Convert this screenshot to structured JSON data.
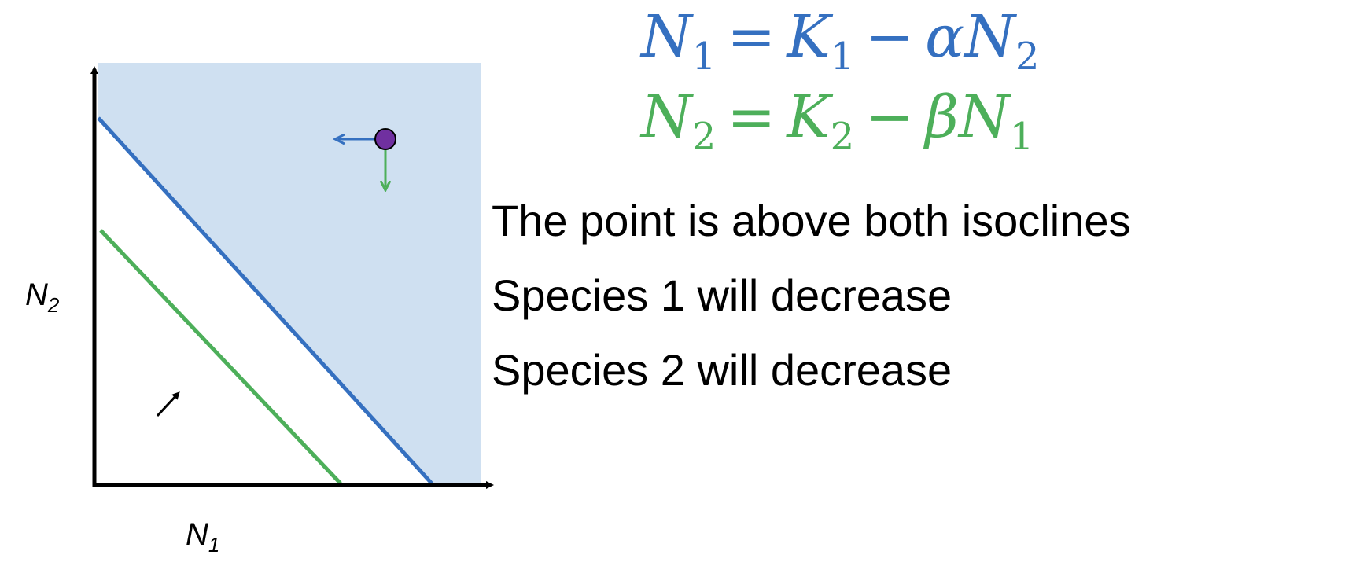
{
  "diagram": {
    "colors": {
      "region_fill": "#cfe0f1",
      "species1_isocline": "#3570c0",
      "species2_isocline": "#4daf5a",
      "point_fill": "#7030a0",
      "axis": "#000000"
    },
    "axes": {
      "x_label": {
        "symbol": "N",
        "subscript": "1"
      },
      "y_label": {
        "symbol": "N",
        "subscript": "2"
      }
    }
  },
  "equations": [
    {
      "lhs": "N",
      "lhs_sub": "1",
      "eq": "=",
      "k": "K",
      "k_sub": "1",
      "minus": "−",
      "coef": "α",
      "var": "N",
      "var_sub": "2"
    },
    {
      "lhs": "N",
      "lhs_sub": "2",
      "eq": "=",
      "k": "K",
      "k_sub": "2",
      "minus": "−",
      "coef": "β",
      "var": "N",
      "var_sub": "1"
    }
  ],
  "statements": [
    "The point is above both isoclines",
    "Species 1 will decrease",
    "Species 2 will decrease"
  ]
}
